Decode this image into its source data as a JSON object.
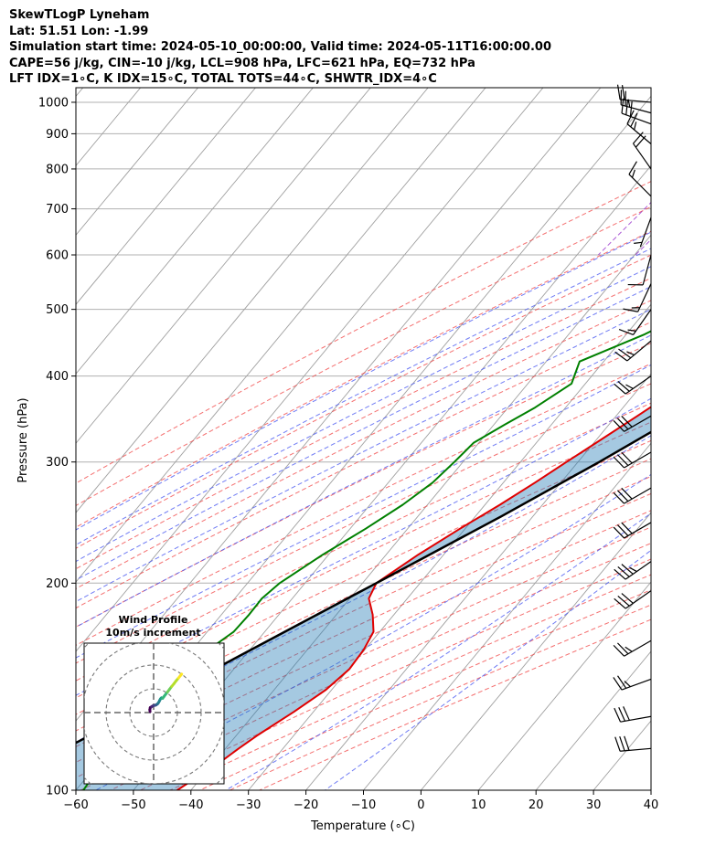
{
  "header": {
    "title": "SkewTLogP Lyneham",
    "location": "Lat: 51.51   Lon: -1.99",
    "times": "Simulation start time: 2024-05-10_00:00:00, Valid time: 2024-05-11T16:00:00.00",
    "indices1": "CAPE=56 j/kg, CIN=-10 j/kg, LCL=908 hPa, LFC=621 hPa, EQ=732 hPa",
    "indices2": "LFT IDX=1∘C, K IDX=15∘C, TOTAL TOTS=44∘C, SHWTR_IDX=4∘C"
  },
  "chart_data": {
    "type": "line",
    "xlabel": "Temperature (∘C)",
    "ylabel": "Pressure (hPa)",
    "xlim": [
      -60,
      40
    ],
    "ylim": [
      1050,
      100
    ],
    "y_log": true,
    "grid": true,
    "x_ticks": [
      -60,
      -50,
      -40,
      -30,
      -20,
      -10,
      0,
      10,
      20,
      30,
      40
    ],
    "x_tick_labels": [
      "−60",
      "−50",
      "−40",
      "−30",
      "−20",
      "−10",
      "0",
      "10",
      "20",
      "30",
      "40"
    ],
    "y_ticks": [
      1000,
      900,
      800,
      700,
      600,
      500,
      400,
      300,
      200,
      100
    ],
    "y_tick_labels": [
      "1000",
      "900",
      "800",
      "700",
      "600",
      "500",
      "400",
      "300",
      "200",
      "100"
    ],
    "colors": {
      "temperature": "#e00000",
      "dewpoint": "#008000",
      "parcel": "#000000",
      "cape_fill": "#1f77b4",
      "dry_adiabat": "#f04040",
      "moist_adiabat": "#4050f0",
      "mixing_ratio": "#9932cc",
      "isotherm": "#a0a0a0"
    },
    "series": [
      {
        "role": "temperature",
        "pressure": [
          1000,
          960,
          900,
          870,
          840,
          800,
          760,
          700,
          640,
          600,
          550,
          500,
          460,
          420,
          380,
          350,
          320,
          300,
          280,
          260,
          240,
          220,
          200,
          190,
          180,
          170,
          160,
          150,
          140,
          130,
          120,
          115,
          110,
          105,
          100
        ],
        "temp": [
          21.2,
          18.2,
          15.1,
          13.1,
          12.3,
          12.3,
          12.5,
          10.2,
          7.0,
          4.7,
          1.8,
          -2.2,
          -5.6,
          -9.4,
          -13.4,
          -16.3,
          -19.6,
          -22.0,
          -24.5,
          -27.4,
          -30.9,
          -34.4,
          -37.6,
          -36.7,
          -33.7,
          -31.1,
          -30.2,
          -29.9,
          -31.0,
          -33.4,
          -36.4,
          -37.7,
          -38.9,
          -40.6,
          -42.4
        ]
      },
      {
        "role": "dewpoint",
        "pressure": [
          1000,
          980,
          960,
          940,
          900,
          860,
          830,
          800,
          760,
          700,
          680,
          640,
          600,
          560,
          520,
          490,
          460,
          420,
          390,
          360,
          340,
          320,
          300,
          280,
          260,
          240,
          220,
          200,
          190,
          180,
          170,
          160,
          150,
          140,
          130,
          120,
          110,
          100
        ],
        "temp": [
          14.8,
          14.8,
          14.6,
          15.0,
          13.5,
          10.6,
          8.3,
          5.3,
          0.6,
          -11.2,
          -12.5,
          -13.8,
          -16.7,
          -18.5,
          -21.4,
          -22.8,
          -26.8,
          -34.2,
          -32.4,
          -35.3,
          -38.1,
          -40.9,
          -41.5,
          -42.3,
          -44.3,
          -47.3,
          -51.0,
          -54.4,
          -55.3,
          -55.2,
          -55.4,
          -57.2,
          -58.5,
          -59.9,
          -60.0,
          -60.0,
          -59.4,
          -58.7
        ]
      },
      {
        "role": "parcel",
        "pressure": [
          1000,
          970,
          940,
          908,
          870,
          830,
          800,
          760,
          720,
          680,
          640,
          600,
          550,
          500,
          450,
          400,
          350,
          300,
          250,
          200,
          170,
          150,
          130,
          115,
          100
        ],
        "temp": [
          21.0,
          18.6,
          16.8,
          15.2,
          14.3,
          13.4,
          12.9,
          12.2,
          11.3,
          10.3,
          9.1,
          7.8,
          5.8,
          3.3,
          0.2,
          -3.8,
          -9.1,
          -16.3,
          -25.5,
          -37.6,
          -46.5,
          -53.3,
          -61.0,
          -67.9,
          -75.9
        ]
      }
    ],
    "winds": [
      {
        "p": 1000,
        "dir": 275,
        "speed_kt": 20
      },
      {
        "p": 965,
        "dir": 285,
        "speed_kt": 25
      },
      {
        "p": 930,
        "dir": 290,
        "speed_kt": 30
      },
      {
        "p": 870,
        "dir": 310,
        "speed_kt": 25
      },
      {
        "p": 800,
        "dir": 325,
        "speed_kt": 20
      },
      {
        "p": 730,
        "dir": 315,
        "speed_kt": 15
      },
      {
        "p": 680,
        "dir": 200,
        "speed_kt": 5
      },
      {
        "p": 600,
        "dir": 195,
        "speed_kt": 10
      },
      {
        "p": 545,
        "dir": 205,
        "speed_kt": 15
      },
      {
        "p": 500,
        "dir": 215,
        "speed_kt": 15
      },
      {
        "p": 450,
        "dir": 230,
        "speed_kt": 25
      },
      {
        "p": 400,
        "dir": 235,
        "speed_kt": 25
      },
      {
        "p": 350,
        "dir": 240,
        "speed_kt": 30
      },
      {
        "p": 310,
        "dir": 240,
        "speed_kt": 30
      },
      {
        "p": 275,
        "dir": 240,
        "speed_kt": 30
      },
      {
        "p": 245,
        "dir": 240,
        "speed_kt": 30
      },
      {
        "p": 215,
        "dir": 235,
        "speed_kt": 35
      },
      {
        "p": 195,
        "dir": 235,
        "speed_kt": 30
      },
      {
        "p": 165,
        "dir": 240,
        "speed_kt": 25
      },
      {
        "p": 145,
        "dir": 250,
        "speed_kt": 25
      },
      {
        "p": 128,
        "dir": 260,
        "speed_kt": 30
      },
      {
        "p": 115,
        "dir": 265,
        "speed_kt": 30
      }
    ],
    "hodograph": {
      "title": "Wind Profile",
      "subtitle": "10m/s increment",
      "rings_ms": [
        10,
        20,
        30,
        40
      ],
      "u": [
        -1.5,
        -1.6,
        -1.4,
        -0.8,
        -0.3,
        0.3,
        0.7,
        1.0,
        1.3,
        1.7,
        2.0,
        2.3,
        2.6,
        2.9,
        3.3,
        3.8,
        4.4,
        5.0,
        5.8,
        6.7,
        7.6,
        8.6,
        9.5,
        10.5,
        11.3,
        11.8
      ],
      "v": [
        0.4,
        1.2,
        2.1,
        2.5,
        2.8,
        3.0,
        3.1,
        3.2,
        3.4,
        3.7,
        4.1,
        4.6,
        5.2,
        5.8,
        6.2,
        6.0,
        6.8,
        7.6,
        8.6,
        9.8,
        11.0,
        12.2,
        13.4,
        14.6,
        15.6,
        16.2
      ]
    }
  }
}
